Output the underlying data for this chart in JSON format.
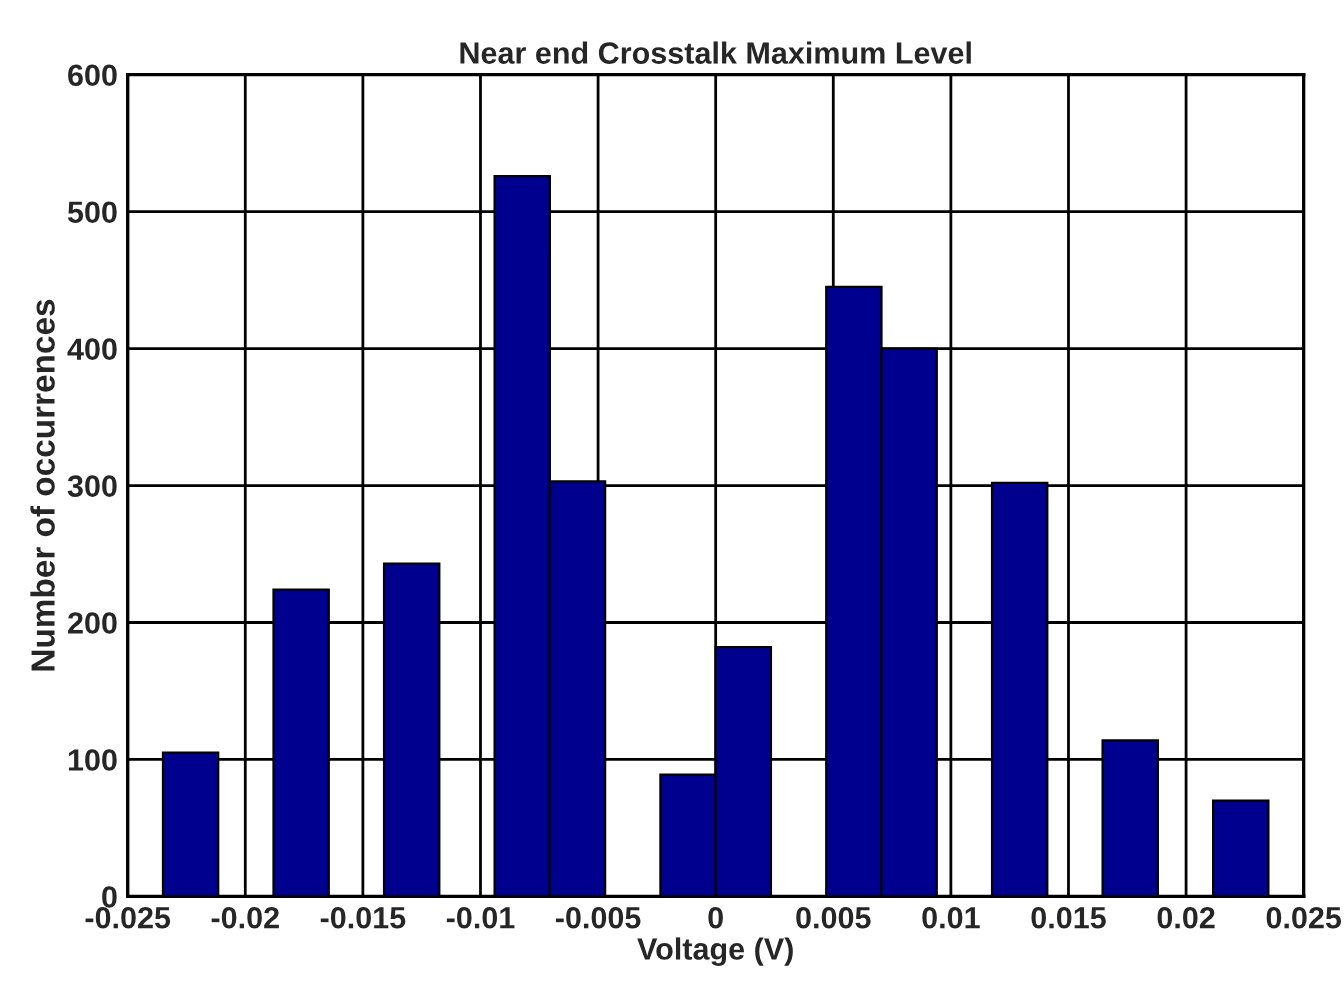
{
  "chart_data": {
    "type": "histogram",
    "title": "Near end Crosstalk Maximum Level",
    "xlabel": "Voltage (V)",
    "ylabel": "Number of occurrences",
    "bins": [
      -0.0235,
      -0.02115,
      -0.0188,
      -0.01645,
      -0.0141,
      -0.01175,
      -0.0094,
      -0.00705,
      -0.0047,
      -0.00235,
      0,
      0.00235,
      0.0047,
      0.00705,
      0.0094,
      0.01175,
      0.0141,
      0.01645,
      0.0188,
      0.02115,
      0.0235
    ],
    "values": [
      105,
      0,
      224,
      0,
      243,
      0,
      526,
      303,
      0,
      89,
      182,
      0,
      445,
      400,
      0,
      302,
      0,
      114,
      0,
      70
    ],
    "color": "#00008f",
    "xlim": [
      -0.025,
      0.025
    ],
    "xticks": [
      -0.025,
      -0.02,
      -0.015,
      -0.01,
      -0.005,
      0,
      0.005,
      0.01,
      0.015,
      0.02,
      0.025
    ],
    "ylim": [
      0,
      600
    ],
    "yticks": [
      0,
      100,
      200,
      300,
      400,
      500,
      600
    ],
    "grid": true
  }
}
